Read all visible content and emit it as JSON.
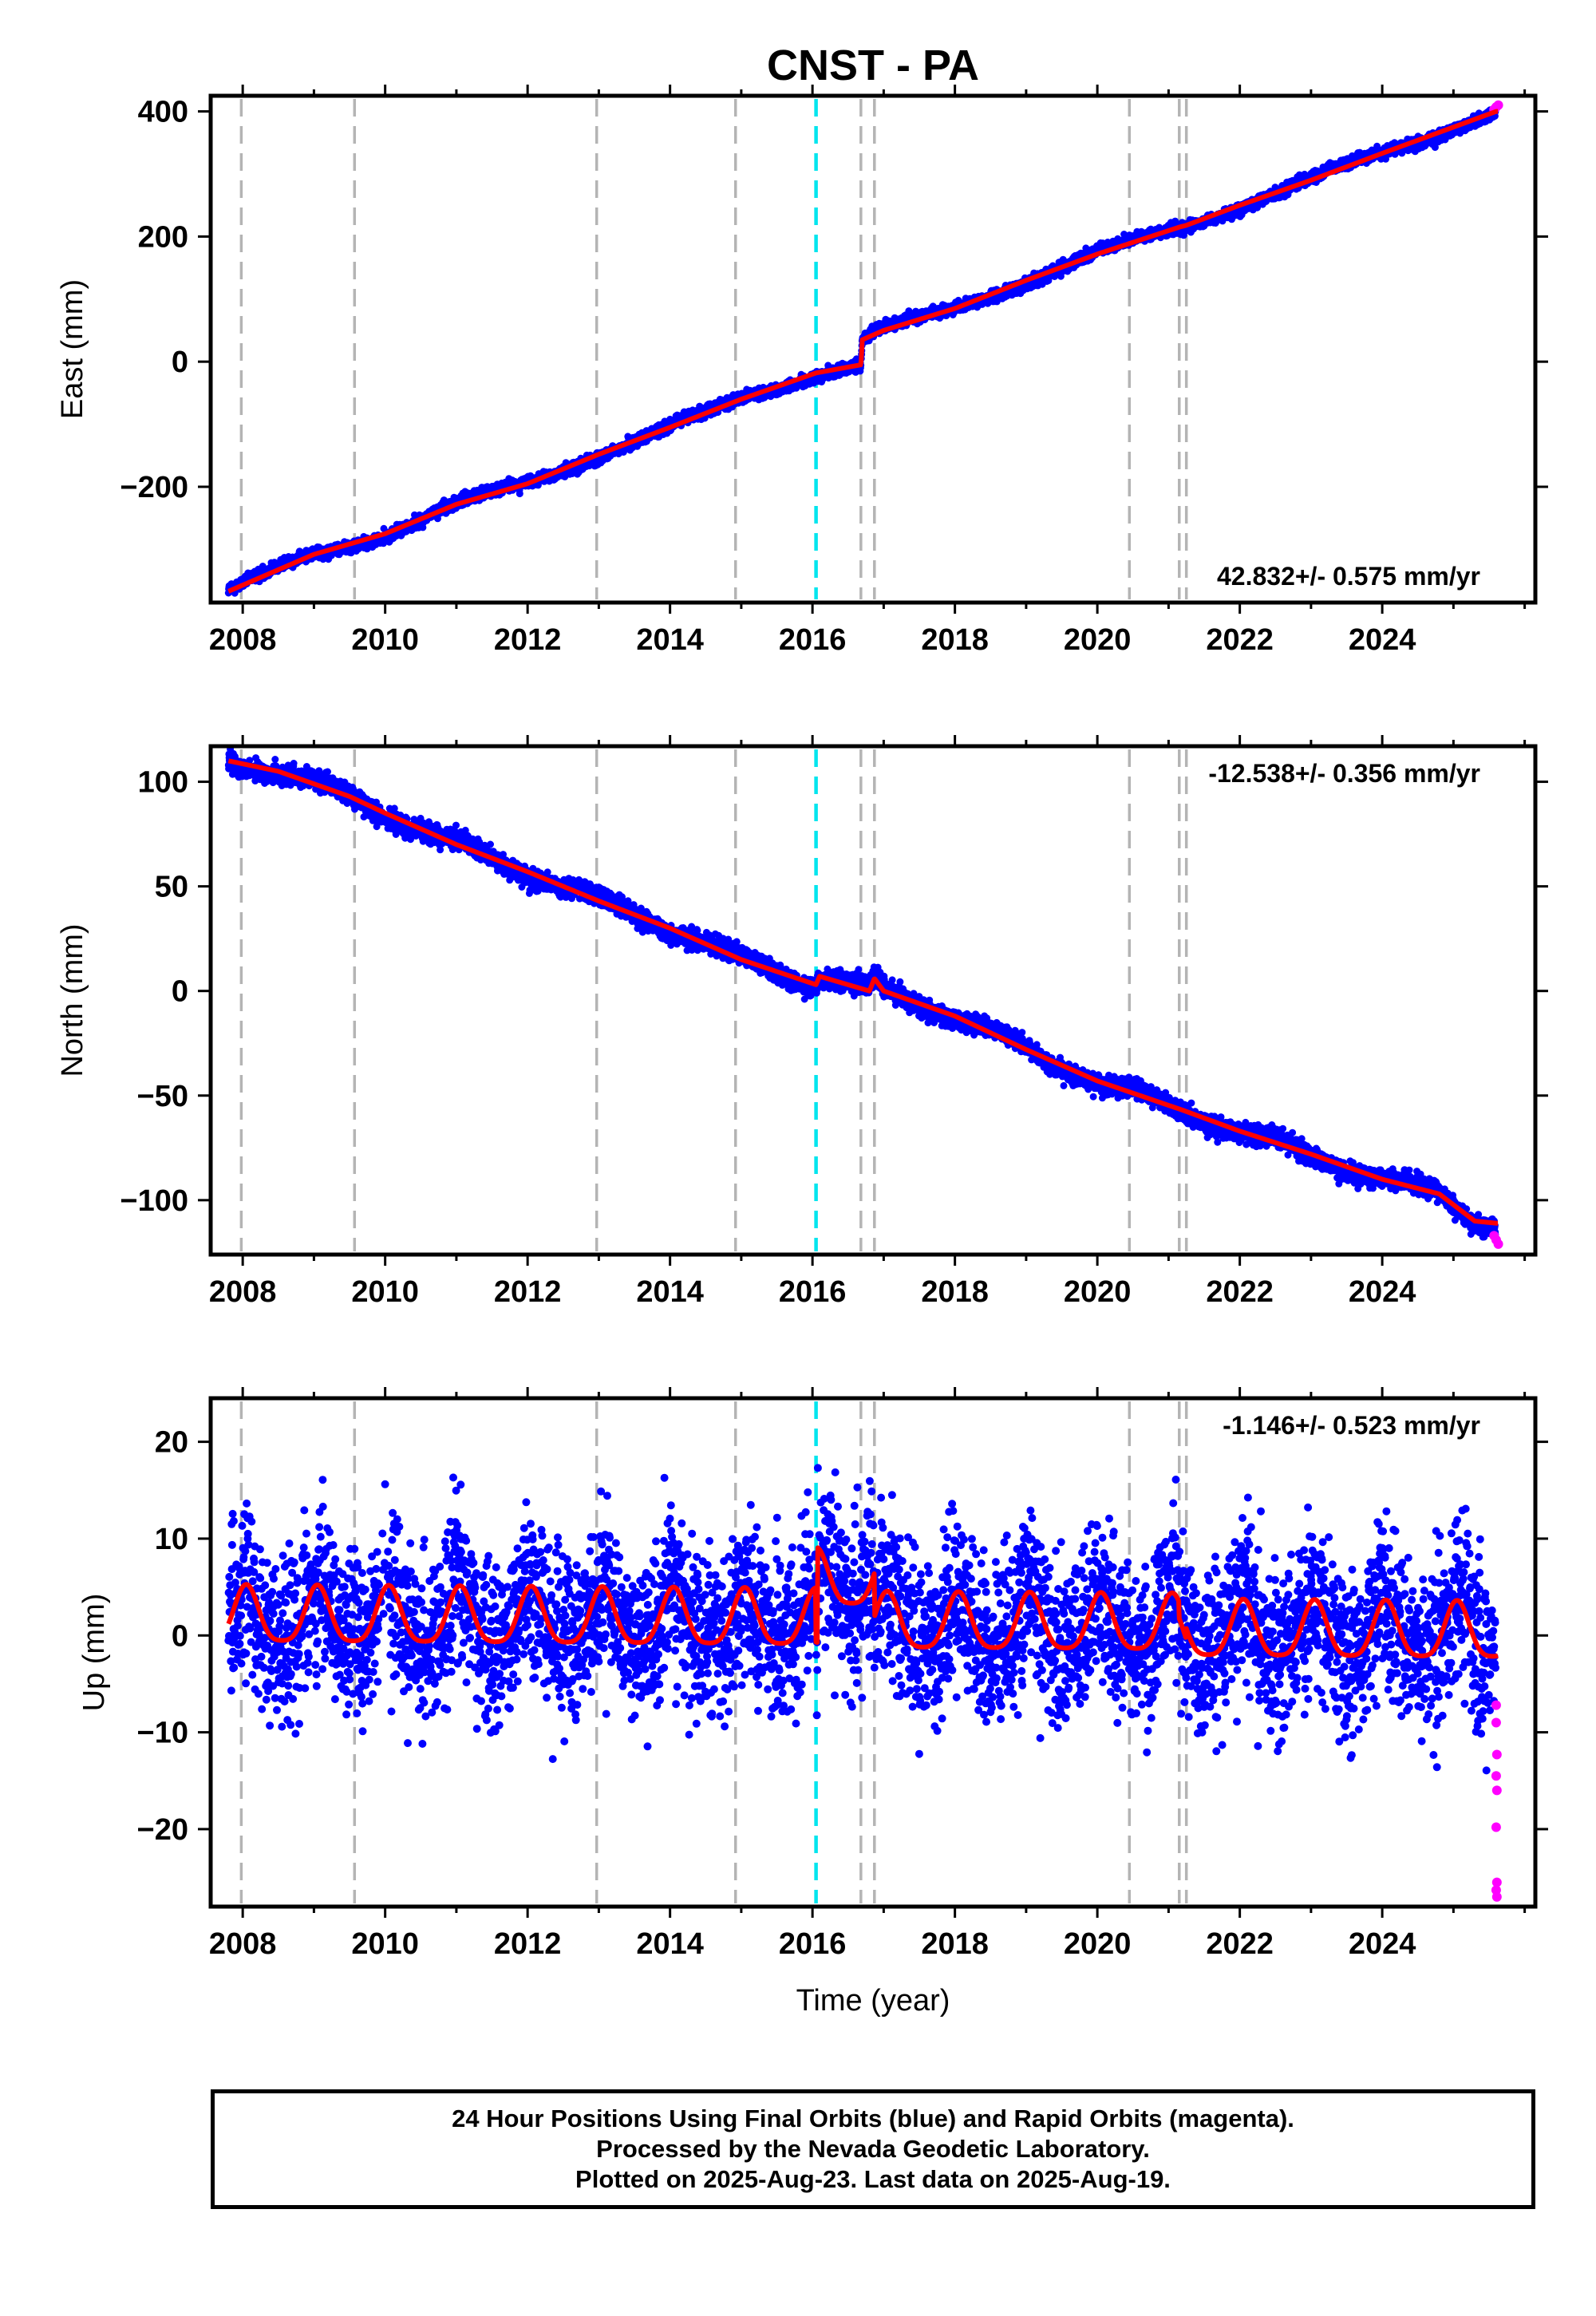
{
  "chart_data": {
    "type": "scatter",
    "title": "CNST - PA",
    "xlabel": "Time (year)",
    "xlim": [
      2007.55,
      2026.15
    ],
    "x_ticks": [
      2008,
      2010,
      2012,
      2014,
      2016,
      2018,
      2020,
      2022,
      2024
    ],
    "data_start": 2007.8,
    "data_end": 2025.63,
    "series_legend": [
      {
        "name": "Final Orbits",
        "color": "#0000ff"
      },
      {
        "name": "Rapid Orbits",
        "color": "#ff00ff"
      },
      {
        "name": "Model",
        "color": "#ff0000"
      }
    ],
    "equipment_changes": [
      2007.98,
      2009.57,
      2012.97,
      2014.92,
      2016.68,
      2016.87,
      2020.45,
      2021.15,
      2021.25
    ],
    "earthquake_lines": [
      2016.05
    ],
    "panels": [
      {
        "id": "east",
        "ylabel": "East (mm)",
        "ylim": [
          -385,
          425
        ],
        "y_ticks": [
          400,
          200,
          0,
          -200
        ],
        "rate_label": "42.832+/- 0.575 mm/yr",
        "rate_position": "bottom-right",
        "model_points": [
          [
            2007.8,
            -367
          ],
          [
            2009.0,
            -308
          ],
          [
            2010.0,
            -275
          ],
          [
            2011.0,
            -228
          ],
          [
            2012.0,
            -195
          ],
          [
            2013.0,
            -148
          ],
          [
            2014.0,
            -105
          ],
          [
            2015.0,
            -60
          ],
          [
            2016.05,
            -18
          ],
          [
            2016.68,
            -5
          ],
          [
            2016.7,
            35
          ],
          [
            2017.0,
            50
          ],
          [
            2018.0,
            85
          ],
          [
            2019.0,
            130
          ],
          [
            2020.0,
            172
          ],
          [
            2021.15,
            215
          ],
          [
            2021.25,
            218
          ],
          [
            2022.0,
            250
          ],
          [
            2023.0,
            290
          ],
          [
            2024.0,
            333
          ],
          [
            2025.6,
            400
          ]
        ],
        "rapid_points": [
          [
            2025.57,
            403
          ],
          [
            2025.6,
            407
          ],
          [
            2025.63,
            410
          ]
        ]
      },
      {
        "id": "north",
        "ylabel": "North (mm)",
        "ylim": [
          -126,
          117
        ],
        "y_ticks": [
          100,
          50,
          0,
          -50,
          -100
        ],
        "rate_label": "-12.538+/- 0.356 mm/yr",
        "rate_position": "top-right",
        "model_points": [
          [
            2007.8,
            110
          ],
          [
            2008.5,
            105
          ],
          [
            2009.5,
            93
          ],
          [
            2010.0,
            85
          ],
          [
            2011.0,
            70
          ],
          [
            2012.0,
            57
          ],
          [
            2013.0,
            43
          ],
          [
            2014.0,
            30
          ],
          [
            2015.0,
            15
          ],
          [
            2016.05,
            3
          ],
          [
            2016.1,
            7
          ],
          [
            2016.8,
            0
          ],
          [
            2016.87,
            6
          ],
          [
            2017.0,
            0
          ],
          [
            2018.0,
            -12
          ],
          [
            2019.0,
            -28
          ],
          [
            2020.0,
            -43
          ],
          [
            2021.2,
            -57
          ],
          [
            2022.0,
            -67
          ],
          [
            2023.0,
            -78
          ],
          [
            2024.0,
            -90
          ],
          [
            2024.8,
            -97
          ],
          [
            2025.3,
            -110
          ],
          [
            2025.6,
            -111
          ]
        ],
        "rapid_points": [
          [
            2025.57,
            -117
          ],
          [
            2025.6,
            -119
          ],
          [
            2025.63,
            -121
          ]
        ]
      },
      {
        "id": "up",
        "ylabel": "Up (mm)",
        "ylim": [
          -28,
          24.5
        ],
        "y_ticks": [
          20,
          10,
          0,
          -10,
          -20
        ],
        "rate_label": "-1.146+/- 0.523 mm/yr",
        "rate_position": "top-right",
        "model_offsets": [
          [
            2007.8,
            1.8
          ],
          [
            2016.05,
            -3.8
          ],
          [
            2016.07,
            6.0
          ],
          [
            2016.87,
            1.5
          ],
          [
            2021.15,
            -0.2
          ],
          [
            2021.25,
            0.9
          ],
          [
            2025.63,
            -1.5
          ]
        ],
        "seasonal_amplitude_mm": 3.2,
        "rapid_points": [
          [
            2025.6,
            -7.2
          ],
          [
            2025.6,
            -9.0
          ],
          [
            2025.61,
            -12.3
          ],
          [
            2025.6,
            -14.5
          ],
          [
            2025.61,
            -16.0
          ],
          [
            2025.6,
            -19.8
          ],
          [
            2025.61,
            -25.5
          ],
          [
            2025.6,
            -26.3
          ],
          [
            2025.61,
            -27.0
          ]
        ]
      }
    ]
  },
  "caption": {
    "line1": "24 Hour Positions Using Final Orbits (blue) and Rapid Orbits (magenta).",
    "line2": "Processed by the Nevada Geodetic Laboratory.",
    "line3": "Plotted on 2025-Aug-23. Last data on 2025-Aug-19."
  }
}
